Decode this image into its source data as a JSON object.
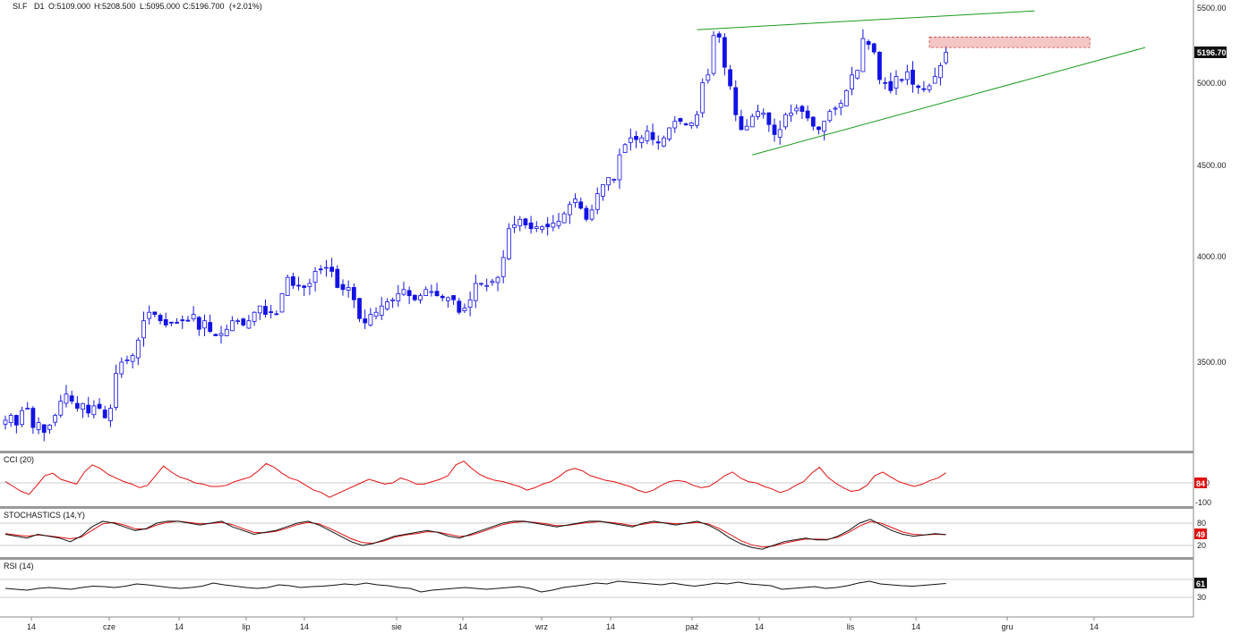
{
  "header": {
    "symbol": "SI.F",
    "timeframe": "D1",
    "open": "O:5109.000",
    "high": "H:5208.500",
    "low": "L:5095.000",
    "close": "C:5196.700",
    "change": "(+2.01%)"
  },
  "current_price_label": "5196.70",
  "colors": {
    "bull_candle_fill": "#ffffff",
    "bear_candle_fill": "#1212e6",
    "candle_outline": "#1212e6",
    "trendline": "#1a9a1a",
    "zone_fill": "#f2b8b8",
    "zone_border": "#d04040",
    "cci_line": "#e01010",
    "stoch_k": "#111111",
    "stoch_d": "#e01010",
    "rsi_line": "#111111",
    "separator": "#888888",
    "cci_badge": "#e01010",
    "stoch_badge": "#e01010",
    "rsi_badge": "#111111"
  },
  "chart_data": [
    {
      "type": "candlestick",
      "title": "",
      "x_ticks": [
        "14",
        "cze",
        "14",
        "lip",
        "14",
        "sie",
        "14",
        "wrz",
        "14",
        "paź",
        "14",
        "lis",
        "14",
        "gru",
        "14"
      ],
      "y_ticks": [
        "5500.00",
        "5000.00",
        "4500.00",
        "4000.00",
        "3500.00"
      ],
      "ylim": [
        3000,
        5500
      ],
      "scale": "log",
      "close_series": [
        3250,
        3270,
        3230,
        3290,
        3300,
        3220,
        3240,
        3200,
        3230,
        3270,
        3330,
        3360,
        3330,
        3300,
        3320,
        3280,
        3310,
        3300,
        3260,
        3300,
        3450,
        3500,
        3510,
        3530,
        3600,
        3690,
        3730,
        3720,
        3690,
        3670,
        3680,
        3680,
        3690,
        3690,
        3720,
        3650,
        3690,
        3640,
        3620,
        3630,
        3650,
        3690,
        3690,
        3670,
        3690,
        3730,
        3760,
        3720,
        3730,
        3720,
        3820,
        3900,
        3860,
        3860,
        3850,
        3870,
        3930,
        3940,
        3950,
        3930,
        3850,
        3840,
        3850,
        3790,
        3700,
        3680,
        3720,
        3730,
        3760,
        3780,
        3790,
        3820,
        3840,
        3810,
        3790,
        3810,
        3840,
        3830,
        3810,
        3800,
        3800,
        3790,
        3730,
        3750,
        3790,
        3870,
        3870,
        3860,
        3880,
        3900,
        4000,
        4150,
        4170,
        4200,
        4170,
        4150,
        4160,
        4160,
        4160,
        4180,
        4190,
        4230,
        4280,
        4310,
        4260,
        4200,
        4250,
        4340,
        4390,
        4430,
        4420,
        4560,
        4620,
        4660,
        4650,
        4660,
        4700,
        4650,
        4630,
        4660,
        4720,
        4760,
        4760,
        4740,
        4750,
        4800,
        5000,
        5050,
        5310,
        5300,
        5100,
        4980,
        4800,
        4710,
        4730,
        4790,
        4820,
        4810,
        4740,
        4680,
        4710,
        4800,
        4810,
        4840,
        4820,
        4780,
        4730,
        4710,
        4760,
        4820,
        4840,
        4870,
        4950,
        5050,
        5080,
        5290,
        5250,
        5200,
        5020,
        5000,
        4950,
        5040,
        5020,
        5070,
        4990,
        4970,
        4960,
        4980,
        5040,
        5110,
        5197
      ],
      "trendlines": [
        {
          "from": {
            "x": "day 125",
            "y": 5350
          },
          "to": {
            "x": "day 186",
            "y": 5480
          }
        },
        {
          "from": {
            "x": "day 135",
            "y": 4560
          },
          "to": {
            "x": "day 206",
            "y": 5230
          }
        }
      ],
      "resistance_zone": {
        "y_low": 5230,
        "y_high": 5300
      },
      "last_price": 5196.7
    },
    {
      "type": "line",
      "title": "CCI (20)",
      "y_ticks": [
        "0",
        "-100"
      ],
      "last_value": "84",
      "series": [
        {
          "name": "CCI (20)",
          "values": [
            10,
            -30,
            -70,
            -95,
            -20,
            60,
            80,
            30,
            10,
            -10,
            90,
            150,
            120,
            70,
            40,
            10,
            -10,
            -40,
            -20,
            60,
            140,
            90,
            50,
            30,
            0,
            -10,
            -30,
            -30,
            -20,
            10,
            30,
            50,
            100,
            160,
            130,
            80,
            40,
            20,
            -20,
            -60,
            -80,
            -120,
            -90,
            -60,
            -30,
            0,
            30,
            10,
            -10,
            0,
            40,
            20,
            -10,
            -10,
            10,
            30,
            60,
            150,
            180,
            120,
            70,
            40,
            20,
            10,
            -10,
            -30,
            -60,
            -40,
            -10,
            10,
            50,
            100,
            120,
            100,
            60,
            40,
            20,
            10,
            -10,
            -30,
            -60,
            -80,
            -60,
            -20,
            10,
            20,
            10,
            -20,
            -40,
            -30,
            10,
            60,
            90,
            40,
            10,
            0,
            -30,
            -50,
            -80,
            -60,
            -20,
            10,
            80,
            130,
            50,
            0,
            -40,
            -70,
            -60,
            -20,
            60,
            90,
            50,
            10,
            -10,
            -30,
            -10,
            20,
            40,
            84
          ]
        }
      ]
    },
    {
      "type": "line",
      "title": "STOCHASTICS (14,Y)",
      "y_ticks": [
        "80",
        "20"
      ],
      "last_value": "49",
      "series": [
        {
          "name": "%K",
          "values": [
            50,
            45,
            40,
            50,
            45,
            40,
            30,
            45,
            70,
            85,
            80,
            70,
            60,
            65,
            80,
            85,
            85,
            80,
            75,
            80,
            85,
            70,
            60,
            50,
            55,
            60,
            70,
            80,
            85,
            75,
            60,
            45,
            30,
            20,
            25,
            35,
            45,
            50,
            55,
            60,
            55,
            45,
            40,
            50,
            60,
            70,
            80,
            85,
            85,
            80,
            75,
            70,
            75,
            80,
            85,
            85,
            80,
            75,
            70,
            80,
            85,
            80,
            75,
            80,
            85,
            75,
            60,
            40,
            25,
            15,
            10,
            20,
            30,
            35,
            40,
            35,
            35,
            45,
            60,
            80,
            90,
            75,
            60,
            50,
            45,
            48,
            52,
            49
          ]
        },
        {
          "name": "%D",
          "values": [
            52,
            48,
            45,
            48,
            46,
            42,
            38,
            42,
            60,
            78,
            82,
            75,
            65,
            64,
            75,
            82,
            85,
            82,
            78,
            79,
            82,
            76,
            65,
            55,
            54,
            58,
            66,
            76,
            82,
            78,
            66,
            52,
            38,
            28,
            26,
            32,
            42,
            48,
            52,
            57,
            56,
            50,
            44,
            47,
            56,
            66,
            76,
            82,
            84,
            82,
            78,
            73,
            74,
            78,
            82,
            84,
            82,
            78,
            73,
            77,
            82,
            81,
            78,
            79,
            82,
            78,
            66,
            50,
            33,
            22,
            16,
            18,
            26,
            32,
            37,
            37,
            36,
            42,
            55,
            72,
            84,
            80,
            68,
            56,
            50,
            48,
            50,
            49
          ]
        }
      ]
    },
    {
      "type": "line",
      "title": "RSI (14)",
      "y_ticks": [
        "30"
      ],
      "last_value": "61",
      "series": [
        {
          "name": "RSI (14)",
          "values": [
            50,
            48,
            46,
            50,
            52,
            50,
            48,
            52,
            55,
            54,
            52,
            55,
            60,
            58,
            55,
            52,
            50,
            52,
            55,
            62,
            58,
            55,
            52,
            50,
            52,
            58,
            56,
            52,
            54,
            55,
            57,
            60,
            58,
            62,
            58,
            56,
            52,
            50,
            42,
            46,
            48,
            50,
            52,
            50,
            48,
            50,
            52,
            54,
            50,
            42,
            46,
            52,
            55,
            58,
            62,
            60,
            66,
            64,
            62,
            60,
            58,
            62,
            58,
            55,
            58,
            62,
            60,
            64,
            60,
            58,
            56,
            48,
            50,
            52,
            54,
            50,
            52,
            56,
            62,
            66,
            60,
            58,
            56,
            55,
            57,
            59,
            61
          ]
        }
      ]
    }
  ]
}
